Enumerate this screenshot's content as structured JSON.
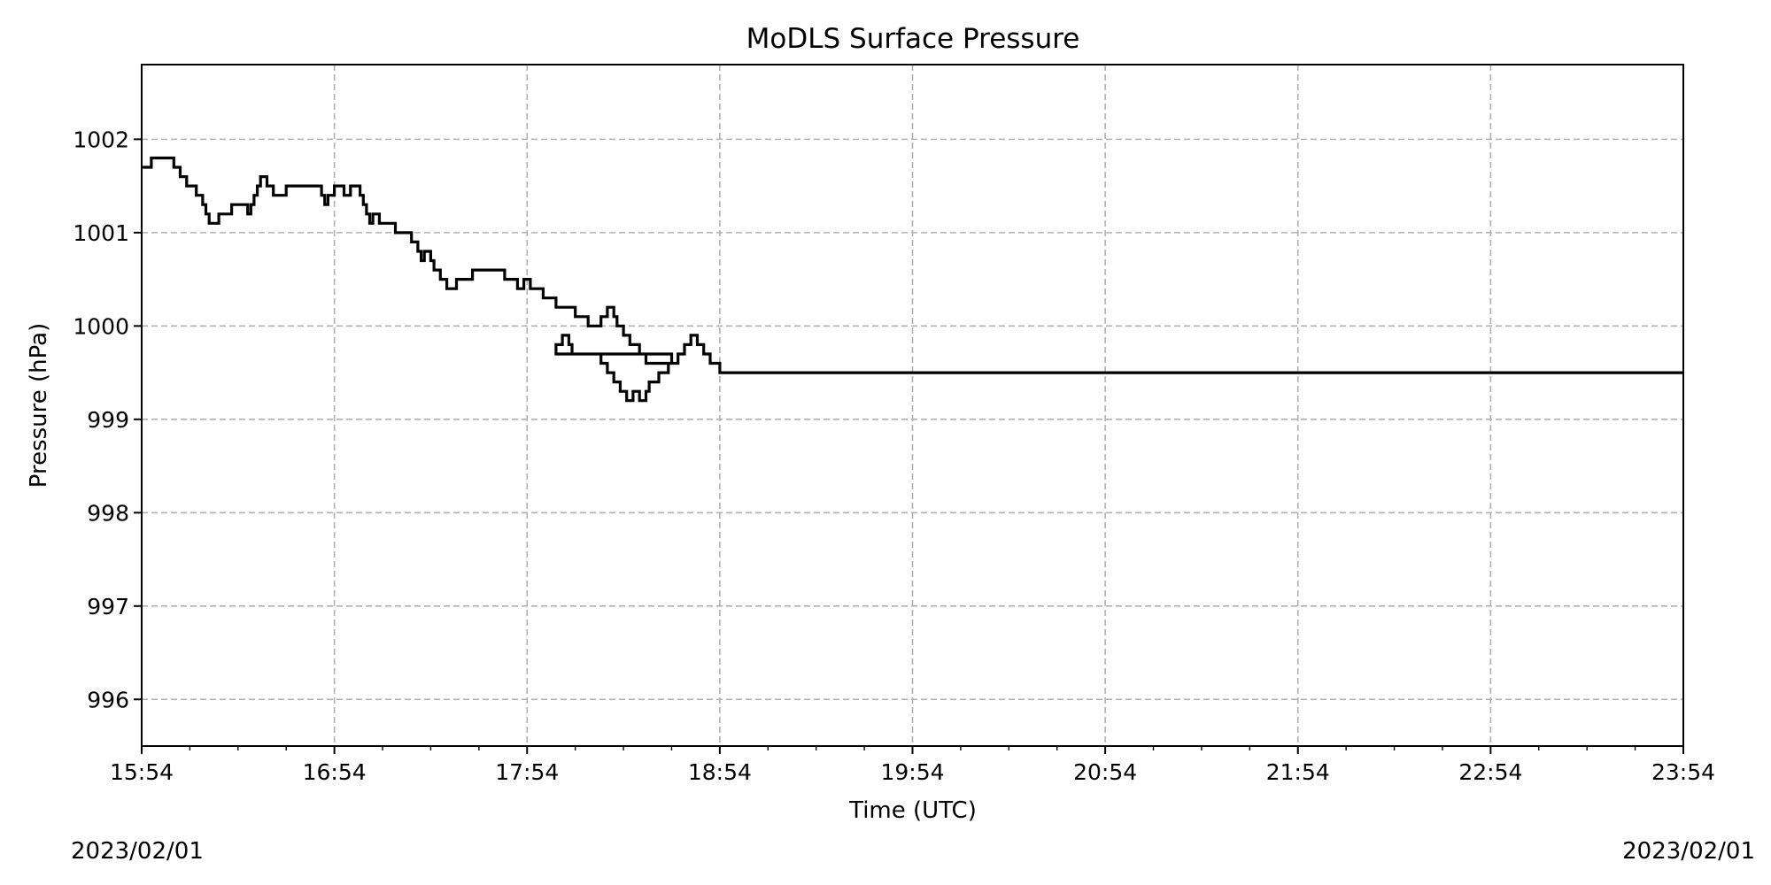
{
  "chart_data": {
    "type": "line",
    "title": "MoDLS Surface Pressure",
    "xlabel": "Time (UTC)",
    "ylabel": "Pressure (hPa)",
    "x_ticks": [
      "15:54",
      "16:54",
      "17:54",
      "18:54",
      "19:54",
      "20:54",
      "21:54",
      "22:54",
      "23:54"
    ],
    "x_range": [
      "15:54",
      "23:54"
    ],
    "y_ticks": [
      996,
      997,
      998,
      999,
      1000,
      1001,
      1002
    ],
    "ylim": [
      995.5,
      1002.8
    ],
    "grid": true,
    "step": true,
    "line_color": "#000000",
    "date_left": "2023/02/01",
    "date_right": "2023/02/01",
    "series": [
      {
        "x": [
          "15:54",
          "15:57",
          "16:00",
          "16:04",
          "16:06",
          "16:08",
          "16:10",
          "16:11",
          "16:13",
          "16:14",
          "16:15",
          "16:18",
          "16:22",
          "16:27",
          "16:28",
          "16:29",
          "16:30",
          "16:31",
          "16:33",
          "16:34",
          "16:35",
          "16:36",
          "16:39",
          "16:42",
          "16:50",
          "16:51",
          "16:52",
          "16:54",
          "16:57",
          "16:59",
          "17:02",
          "17:03",
          "17:04",
          "17:05",
          "17:06",
          "17:08",
          "17:10",
          "17:13",
          "17:16",
          "17:18",
          "17:19",
          "17:20",
          "17:21",
          "17:22",
          "17:24",
          "17:25",
          "17:27",
          "17:29",
          "17:32",
          "17:37",
          "17:47",
          "17:51",
          "17:53",
          "17:55",
          "17:59",
          "17:61",
          "17:63",
          "17:69",
          "17:73",
          "17:77",
          "17:79",
          "17:81",
          "17:82",
          "17:84",
          "17:86",
          "17:89",
          "17:91",
          "17:99",
          "18:03",
          "18:05",
          "18:07",
          "18:08",
          "18:14",
          "18:17",
          "18:19",
          "18:21",
          "18:23",
          "18:25",
          "18:27",
          "18:29",
          "18:31",
          "18:32",
          "18:35",
          "18:38",
          "18:41",
          "18:43",
          "18:45",
          "18:47",
          "18:49",
          "18:51",
          "18:54"
        ],
        "values": [
          1001.7,
          1001.8,
          1001.8,
          1001.7,
          1001.6,
          1001.5,
          1001.5,
          1001.4,
          1001.3,
          1001.2,
          1001.1,
          1001.2,
          1001.3,
          1001.2,
          1001.3,
          1001.4,
          1001.5,
          1001.6,
          1001.5,
          1001.5,
          1001.4,
          1001.4,
          1001.5,
          1001.5,
          1001.4,
          1001.3,
          1001.4,
          1001.5,
          1001.4,
          1001.5,
          1001.4,
          1001.3,
          1001.2,
          1001.1,
          1001.2,
          1001.1,
          1001.1,
          1001.0,
          1001.0,
          1000.9,
          1000.9,
          1000.8,
          1000.7,
          1000.8,
          1000.7,
          1000.6,
          1000.5,
          1000.4,
          1000.5,
          1000.6,
          1000.5,
          1000.4,
          1000.5,
          1000.4,
          1000.3,
          1000.3,
          1000.2,
          1000.1,
          1000.0,
          1000.1,
          1000.2,
          1000.1,
          1000.0,
          999.9,
          999.8,
          999.7,
          999.6,
          999.7,
          999.8,
          999.9,
          999.8,
          999.7,
          999.7,
          999.6,
          999.5,
          999.4,
          999.3,
          999.2,
          999.3,
          999.2,
          999.3,
          999.4,
          999.5,
          999.6,
          999.7,
          999.8,
          999.9,
          999.8,
          999.7,
          999.6,
          999.5
        ]
      }
    ]
  }
}
